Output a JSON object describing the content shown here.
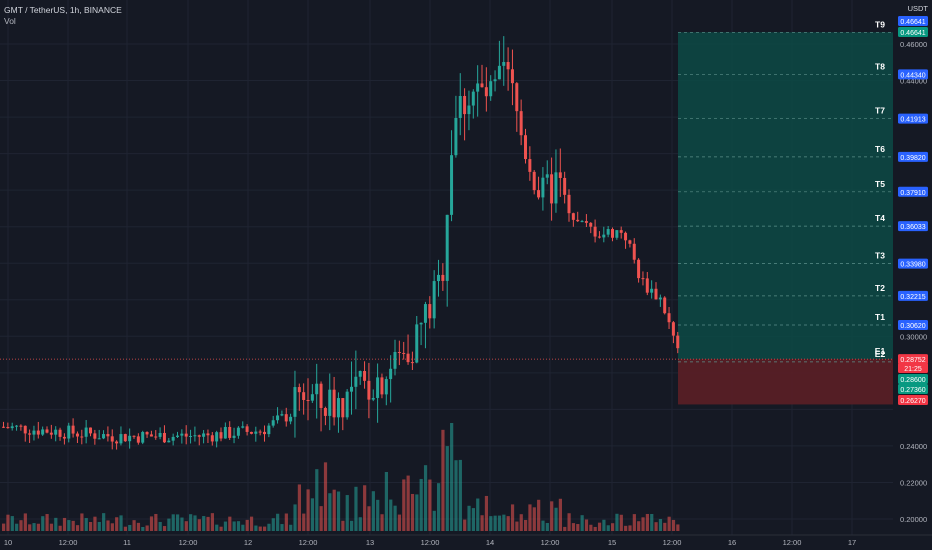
{
  "header": {
    "symbol_line": "GMT / TetherUS, 1h, BINANCE",
    "volume_label": "Vol"
  },
  "currency": "USDT",
  "price_axis": {
    "ticks": [
      "0.46000",
      "0.44000",
      "0.30000",
      "0.24000",
      "0.22000",
      "0.20000"
    ]
  },
  "time_axis": {
    "labels": [
      "10",
      "12:00",
      "11",
      "12:00",
      "12",
      "12:00",
      "13",
      "12:00",
      "14",
      "12:00",
      "15",
      "12:00",
      "16",
      "12:00",
      "17"
    ]
  },
  "targets": [
    {
      "label": "T9",
      "price": 0.46641,
      "text": "0.46641",
      "badge": "#2962ff"
    },
    {
      "label": "T8",
      "price": 0.4434,
      "text": "0.44340",
      "badge": "#2962ff"
    },
    {
      "label": "T7",
      "price": 0.41913,
      "text": "0.41913",
      "badge": "#2962ff"
    },
    {
      "label": "T6",
      "price": 0.3982,
      "text": "0.39820",
      "badge": "#2962ff"
    },
    {
      "label": "T5",
      "price": 0.3791,
      "text": "0.37910",
      "badge": "#2962ff"
    },
    {
      "label": "T4",
      "price": 0.36033,
      "text": "0.36033",
      "badge": "#2962ff"
    },
    {
      "label": "T3",
      "price": 0.3398,
      "text": "0.33980",
      "badge": "#2962ff"
    },
    {
      "label": "T2",
      "price": 0.32215,
      "text": "0.32215",
      "badge": "#2962ff"
    },
    {
      "label": "T1",
      "price": 0.3062,
      "text": "0.30620",
      "badge": "#2962ff"
    },
    {
      "label": "E1",
      "price": 0.28752,
      "text": "0.28752",
      "badge": "#f23645"
    },
    {
      "label": "E2",
      "price": 0.286,
      "text": "0.28600",
      "badge": "#089981"
    }
  ],
  "extra_badges": [
    {
      "text": "0.46641",
      "color": "#089981"
    },
    {
      "text": "21:25",
      "color": "#f23645"
    },
    {
      "text": "0.28600",
      "color": "#089981"
    },
    {
      "text": "0.27360",
      "color": "#089981"
    },
    {
      "text": "0.26270",
      "color": "#f23645"
    }
  ],
  "zones": {
    "profit": {
      "top": 0.46641,
      "bottom": 0.28752,
      "color": "#0c4a45"
    },
    "loss": {
      "top": 0.28752,
      "bottom": 0.2627,
      "color": "#5b1f26"
    }
  },
  "colors": {
    "up": "#26a69a",
    "down": "#ef5350",
    "background": "#151924",
    "grid": "#1f2432"
  },
  "chart_data": {
    "type": "candlestick",
    "title": "GMT / TetherUS, 1h, BINANCE",
    "price_range": [
      0.195,
      0.475
    ],
    "last_price": 0.28752,
    "series_hint": "hourly OHLC with volume bars; rise from ~0.245 on Jul 12 to ~0.45 on Jul 14 then decline to ~0.287 on Jul 15"
  }
}
